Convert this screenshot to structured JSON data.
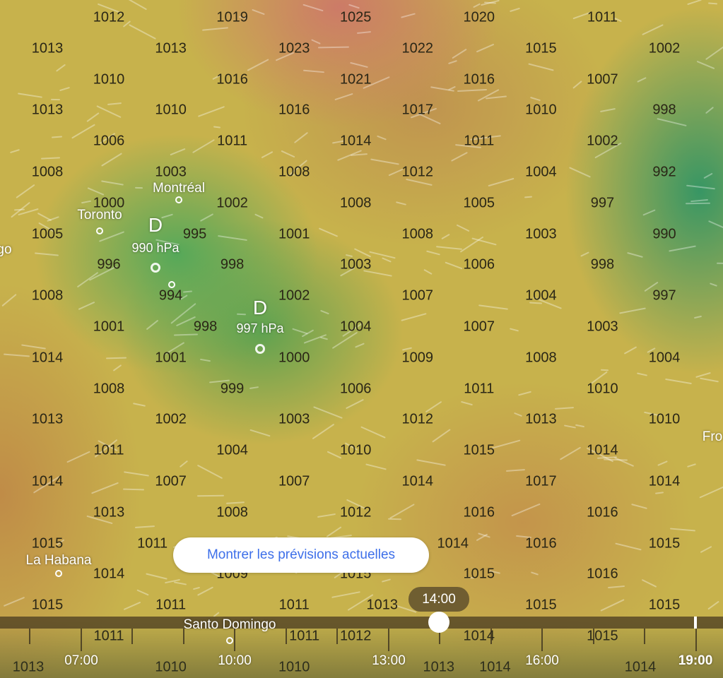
{
  "map": {
    "layer": "pressure",
    "unit": "hPa",
    "pressure_rows": [
      {
        "offset": "even",
        "values": [
          "1012",
          "1019",
          "1025",
          "1020",
          "1011"
        ]
      },
      {
        "offset": "odd",
        "values": [
          "1013",
          "1013",
          "1023",
          "1022",
          "1015",
          "1002"
        ]
      },
      {
        "offset": "even",
        "values": [
          "1010",
          "1016",
          "1021",
          "1016",
          "1007"
        ]
      },
      {
        "offset": "odd",
        "values": [
          "1013",
          "1010",
          "1016",
          "1017",
          "1010",
          "998"
        ]
      },
      {
        "offset": "even",
        "values": [
          "1006",
          "1011",
          "1014",
          "1011",
          "1002"
        ]
      },
      {
        "offset": "odd",
        "values": [
          "1008",
          "1003",
          "1008",
          "1012",
          "1004",
          "992"
        ]
      },
      {
        "offset": "even",
        "values": [
          "1000",
          "1002",
          "1008",
          "1005",
          "997"
        ]
      },
      {
        "offset": "odd",
        "values": [
          "1005",
          "995",
          "1001",
          "1008",
          "1003",
          "990"
        ]
      },
      {
        "offset": "even",
        "values": [
          "996",
          "998",
          "1003",
          "1006",
          "998"
        ]
      },
      {
        "offset": "odd",
        "values": [
          "1008",
          "994",
          "1002",
          "1007",
          "1004",
          "997"
        ]
      },
      {
        "offset": "even",
        "values": [
          "1001",
          "998",
          "1004",
          "1007",
          "1003"
        ]
      },
      {
        "offset": "odd",
        "values": [
          "1014",
          "1001",
          "1000",
          "1009",
          "1008",
          "1004"
        ]
      },
      {
        "offset": "even",
        "values": [
          "1008",
          "999",
          "1006",
          "1011",
          "1010"
        ]
      },
      {
        "offset": "odd",
        "values": [
          "1013",
          "1002",
          "1003",
          "1012",
          "1013",
          "1010"
        ]
      },
      {
        "offset": "even",
        "values": [
          "1011",
          "1004",
          "1010",
          "1015",
          "1014"
        ]
      },
      {
        "offset": "odd",
        "values": [
          "1014",
          "1007",
          "1007",
          "1014",
          "1017",
          "1014"
        ]
      },
      {
        "offset": "even",
        "values": [
          "1013",
          "1008",
          "1012",
          "1016",
          "1016"
        ]
      },
      {
        "offset": "odd",
        "values": [
          "1015",
          "1011",
          "",
          "1014",
          "1016",
          "1015"
        ]
      },
      {
        "offset": "even",
        "values": [
          "1014",
          "1009",
          "1015",
          "1015",
          "1016"
        ]
      },
      {
        "offset": "odd",
        "values": [
          "1015",
          "1011",
          "1011",
          "1013",
          "1015",
          "1015"
        ]
      },
      {
        "offset": "even",
        "values": [
          "1011",
          "1011",
          "1012",
          "1014",
          "1015"
        ]
      },
      {
        "offset": "odd",
        "values": [
          "1013",
          "1010",
          "1010",
          "1013",
          "1014",
          "1014"
        ]
      }
    ],
    "cities": {
      "montreal": "Montréal",
      "toronto": "Toronto",
      "chicago_partial": "go",
      "la_habana": "La Habana",
      "santo_domingo": "Santo Domingo",
      "right_partial": "Fro"
    },
    "lows": [
      {
        "symbol": "D",
        "pressure": "990 hPa"
      },
      {
        "symbol": "D",
        "pressure": "997 hPa"
      }
    ],
    "colors": {
      "high": "#cd7869",
      "mid": "#c7b24c",
      "low": "#50a85a",
      "deep_low": "#37966a"
    }
  },
  "current_forecast_button": {
    "label": "Montrer les prévisions actuelles",
    "color": "#3d6fe9"
  },
  "timeline": {
    "labels": [
      "07:00",
      "10:00",
      "13:00",
      "16:00",
      "19:00"
    ],
    "current_label": "19:00",
    "selected_time": "14:00"
  }
}
